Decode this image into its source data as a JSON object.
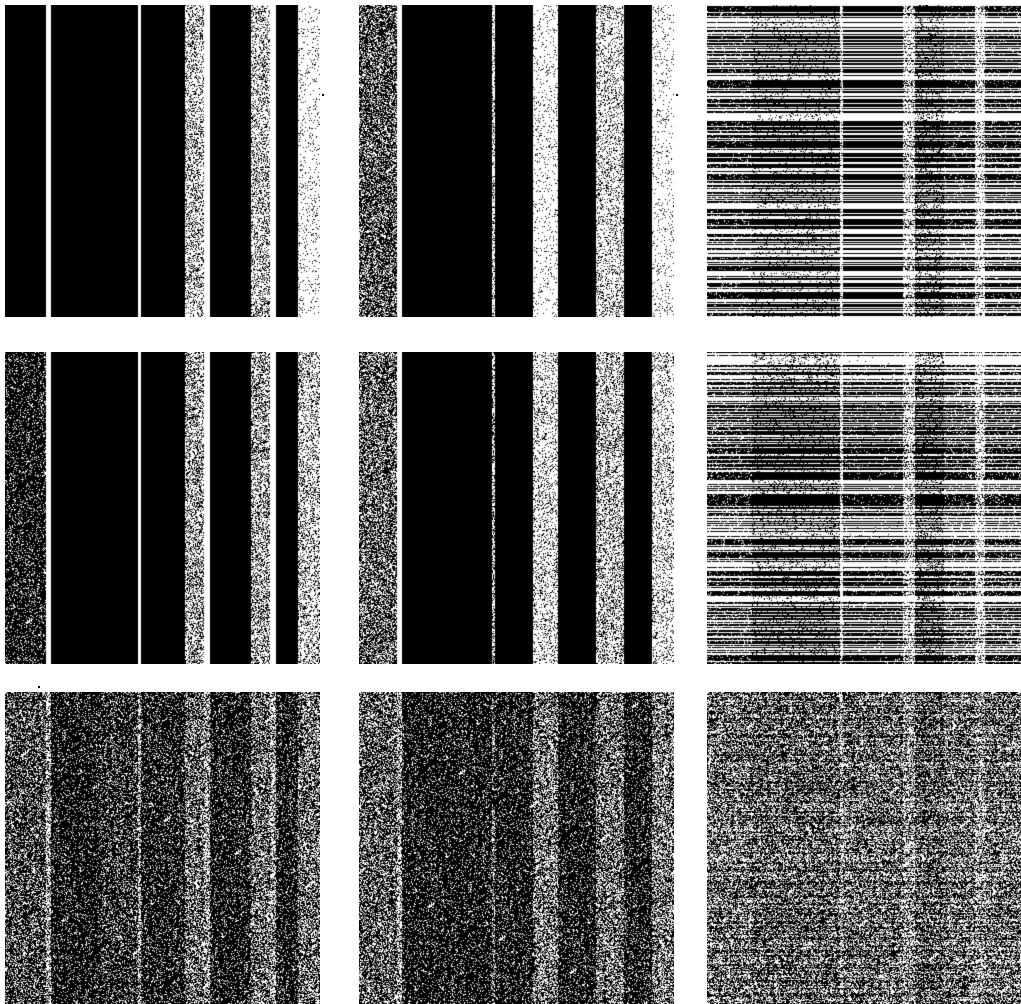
{
  "figure": {
    "rows": 3,
    "cols": 3,
    "colors": {
      "background": "#ffffff",
      "ink": "#000000",
      "light": "#ffffff",
      "mid": "#8a8a8a"
    },
    "panels": [
      {
        "id": "p1",
        "row": 1,
        "col": 1,
        "texture": "vertical-bands",
        "noise": 0.15
      },
      {
        "id": "p2",
        "row": 1,
        "col": 2,
        "texture": "vertical-bands",
        "noise": 0.22
      },
      {
        "id": "p3",
        "row": 1,
        "col": 3,
        "texture": "horizontal-streaks",
        "noise": 0.35
      },
      {
        "id": "p4",
        "row": 2,
        "col": 1,
        "texture": "vertical-bands",
        "noise": 0.28
      },
      {
        "id": "p5",
        "row": 2,
        "col": 2,
        "texture": "vertical-bands",
        "noise": 0.32
      },
      {
        "id": "p6",
        "row": 2,
        "col": 3,
        "texture": "horizontal-streaks",
        "noise": 0.4
      },
      {
        "id": "p7",
        "row": 3,
        "col": 1,
        "texture": "speckle",
        "noise": 0.5
      },
      {
        "id": "p8",
        "row": 3,
        "col": 2,
        "texture": "speckle",
        "noise": 0.5
      },
      {
        "id": "p9",
        "row": 3,
        "col": 3,
        "texture": "speckle-streaks",
        "noise": 0.5
      }
    ]
  }
}
